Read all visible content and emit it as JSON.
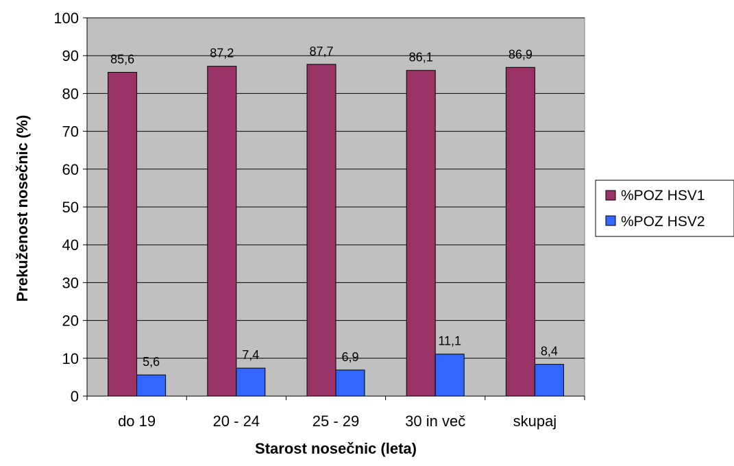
{
  "chart_data": {
    "type": "bar",
    "title": "",
    "xlabel": "Starost nosečnic (leta)",
    "ylabel": "Prekuženost nosečnic (%)",
    "categories": [
      "do 19",
      "20 - 24",
      "25 - 29",
      "30 in več",
      "skupaj"
    ],
    "series": [
      {
        "name": "%POZ HSV1",
        "color": "#993366",
        "values": [
          85.6,
          87.2,
          87.7,
          86.1,
          86.9
        ],
        "labels": [
          "85,6",
          "87,2",
          "87,7",
          "86,1",
          "86,9"
        ]
      },
      {
        "name": "%POZ HSV2",
        "color": "#3366FF",
        "values": [
          5.6,
          7.4,
          6.9,
          11.1,
          8.4
        ],
        "labels": [
          "5,6",
          "7,4",
          "6,9",
          "11,1",
          "8,4"
        ]
      }
    ],
    "ylim": [
      0,
      100
    ],
    "yticks": [
      "0",
      "10",
      "20",
      "30",
      "40",
      "50",
      "60",
      "70",
      "80",
      "90",
      "100"
    ],
    "grid": true,
    "plot_background": "#C0C0C0",
    "legend_position": "right"
  }
}
